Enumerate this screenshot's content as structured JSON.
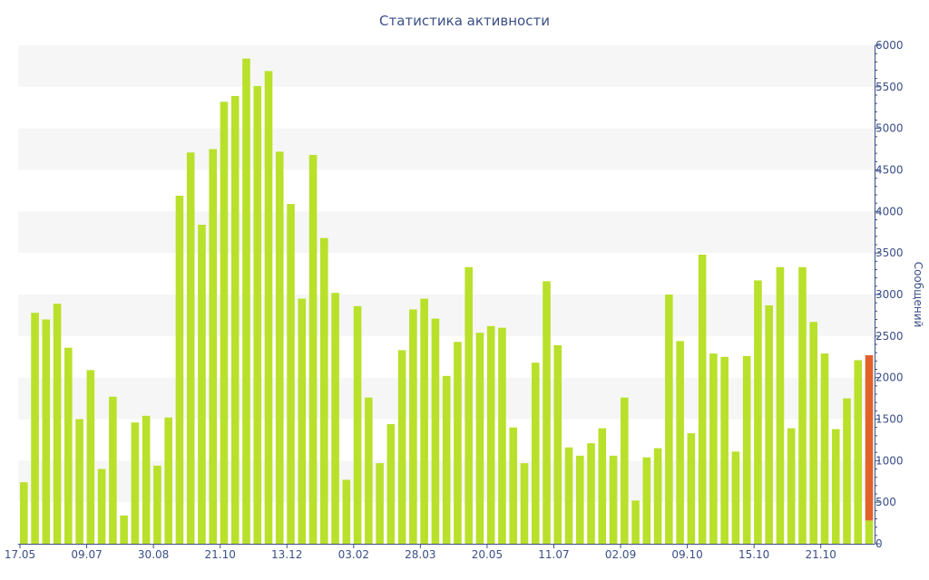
{
  "chart_data": {
    "type": "bar",
    "title": "Статистика активности",
    "ylabel": "Сообщений",
    "xlabel": "",
    "ylim": [
      0,
      6000
    ],
    "yticks": [
      0,
      500,
      1000,
      1500,
      2000,
      2500,
      3000,
      3500,
      4000,
      4500,
      5000,
      5500,
      6000
    ],
    "x_tick_labels": [
      {
        "index": 0,
        "label": "17.05"
      },
      {
        "index": 6,
        "label": "09.07"
      },
      {
        "index": 12,
        "label": "30.08"
      },
      {
        "index": 18,
        "label": "21.10"
      },
      {
        "index": 24,
        "label": "13.12"
      },
      {
        "index": 30,
        "label": "03.02"
      },
      {
        "index": 36,
        "label": "28.03"
      },
      {
        "index": 42,
        "label": "20.05"
      },
      {
        "index": 48,
        "label": "11.07"
      },
      {
        "index": 54,
        "label": "02.09"
      },
      {
        "index": 60,
        "label": "09.10"
      },
      {
        "index": 66,
        "label": "15.10"
      },
      {
        "index": 72,
        "label": "21.10"
      }
    ],
    "values": [
      740,
      2780,
      2700,
      2890,
      2360,
      1500,
      2090,
      900,
      1770,
      340,
      1460,
      1540,
      940,
      1520,
      4190,
      4710,
      3840,
      4750,
      5320,
      5390,
      5840,
      5510,
      5690,
      4720,
      4090,
      2950,
      4680,
      3680,
      3020,
      770,
      2860,
      1760,
      970,
      1440,
      2330,
      2820,
      2950,
      2710,
      2020,
      2430,
      3330,
      2540,
      2620,
      2600,
      1400,
      970,
      2180,
      3160,
      2390,
      1160,
      1060,
      1210,
      1390,
      1060,
      1760,
      520,
      1040,
      1150,
      3000,
      2440,
      1330,
      3480,
      2290,
      2250,
      1110,
      2260,
      3170,
      2870,
      3330,
      1390,
      3330,
      2670,
      2290,
      1380,
      1750,
      2210,
      2270
    ],
    "last_bar_split": {
      "base": 280,
      "highlight": 1990
    },
    "colors": {
      "bar": "#b9e02a",
      "highlight": "#e0622a",
      "band": "#f6f6f6",
      "axis": "#3b4f86",
      "text": "#3b4f86"
    },
    "grid": "alternating-bands",
    "y_axis_side": "right"
  }
}
